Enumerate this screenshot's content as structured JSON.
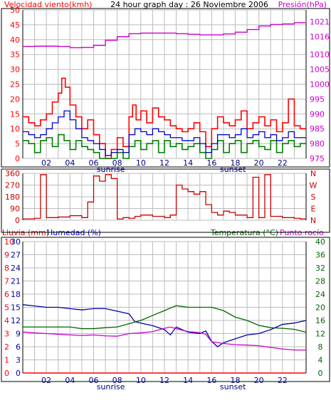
{
  "colors": {
    "wind": "#ff0000",
    "wind_avg": "#0000cc",
    "wind_dir": "#cc0000",
    "pressure": "#cc00cc",
    "rain": "#ff0000",
    "humidity": "#0000aa",
    "temperature": "#006600",
    "dewpoint": "#cc00cc",
    "grid": "#bbbbbb",
    "frame": "#000000",
    "sun_label": "#000080"
  },
  "header": {
    "left_title": "Velocidad viento(kmh)",
    "center_title": "24 hour graph day : 26 Noviembre 2006",
    "right_title": "Presión(hPa)"
  },
  "middle": {
    "direction_labels": [
      "N",
      "W",
      "S",
      "E",
      "N"
    ]
  },
  "bottom": {
    "rain_title": "Lluvia (mm)",
    "humidity_title": "Humedad (%)",
    "temp_title": "Temperatura (°C)",
    "dew_title": "Punto rocío"
  },
  "sun": {
    "sunrise_label": "sunrise",
    "sunset_label": "sunset",
    "sunrise_hour": 7.7,
    "sunset_hour": 17.8
  },
  "chart_data": [
    {
      "type": "line",
      "name": "wind-pressure",
      "x_ticks": [
        "02",
        "04",
        "06",
        "08",
        "10",
        "12",
        "14",
        "16",
        "18",
        "20",
        "22"
      ],
      "x_tick_hours": [
        2,
        4,
        6,
        8,
        10,
        12,
        14,
        16,
        18,
        20,
        22
      ],
      "x_range_hours": [
        0,
        24
      ],
      "y_left": {
        "label": "Velocidad viento(kmh)",
        "range": [
          0,
          50
        ],
        "ticks": [
          0,
          5,
          10,
          15,
          20,
          25,
          30,
          35,
          40,
          45,
          50
        ]
      },
      "y_right": {
        "label": "Presión(hPa)",
        "range": [
          975,
          1025
        ],
        "ticks": [
          975,
          980,
          985,
          990,
          995,
          1000,
          1005,
          1010,
          1016,
          1021
        ]
      },
      "wind_gust": {
        "x": [
          0,
          0.5,
          1,
          1.5,
          2,
          2.5,
          3,
          3.3,
          3.6,
          4,
          4.5,
          5,
          5.5,
          6,
          6.5,
          7,
          7.5,
          8,
          8.5,
          9,
          9.3,
          9.6,
          10,
          10.5,
          11,
          11.5,
          12,
          12.5,
          13,
          13.5,
          14,
          14.5,
          15,
          15.5,
          16,
          16.5,
          17,
          17.5,
          18,
          18.5,
          19,
          19.5,
          20,
          20.5,
          21,
          21.5,
          22,
          22.5,
          23,
          23.5
        ],
        "y": [
          14,
          12,
          11,
          13,
          15,
          19,
          22,
          27,
          24,
          18,
          14,
          10,
          13,
          8,
          5,
          0,
          3,
          7,
          4,
          14,
          18,
          13,
          16,
          12,
          17,
          14,
          13,
          11,
          10,
          9,
          10,
          12,
          9,
          4,
          10,
          14,
          12,
          11,
          13,
          16,
          10,
          12,
          14,
          11,
          13,
          9,
          12,
          20,
          11,
          10
        ]
      },
      "wind_avg": {
        "x": [
          0,
          0.5,
          1,
          1.5,
          2,
          2.5,
          3,
          3.5,
          4,
          4.5,
          5,
          5.5,
          6,
          6.5,
          7,
          7.5,
          8,
          8.5,
          9,
          9.5,
          10,
          10.5,
          11,
          11.5,
          12,
          12.5,
          13,
          13.5,
          14,
          14.5,
          15,
          15.5,
          16,
          16.5,
          17,
          17.5,
          18,
          18.5,
          19,
          19.5,
          20,
          20.5,
          21,
          21.5,
          22,
          22.5,
          23,
          23.5
        ],
        "y": [
          9,
          8,
          7,
          8,
          10,
          12,
          14,
          16,
          13,
          10,
          7,
          6,
          5,
          3,
          1,
          2,
          3,
          2,
          8,
          10,
          9,
          8,
          10,
          9,
          8,
          7,
          7,
          6,
          6,
          7,
          5,
          2,
          5,
          8,
          8,
          7,
          8,
          10,
          7,
          8,
          9,
          7,
          8,
          6,
          7,
          9,
          7,
          7
        ]
      },
      "wind_min": {
        "x": [
          0,
          0.5,
          1,
          1.5,
          2,
          2.5,
          3,
          3.5,
          4,
          4.5,
          5,
          5.5,
          6,
          6.5,
          7,
          7.5,
          8,
          8.5,
          9,
          9.5,
          10,
          10.5,
          11,
          11.5,
          12,
          12.5,
          13,
          13.5,
          14,
          14.5,
          15,
          15.5,
          16,
          16.5,
          17,
          17.5,
          18,
          18.5,
          19,
          19.5,
          20,
          20.5,
          21,
          21.5,
          22,
          22.5,
          23,
          23.5
        ],
        "y": [
          6,
          5,
          2,
          6,
          7,
          4,
          8,
          6,
          3,
          6,
          4,
          3,
          2,
          0,
          0,
          0,
          2,
          0,
          4,
          6,
          3,
          5,
          6,
          2,
          6,
          4,
          5,
          3,
          4,
          5,
          2,
          0,
          3,
          6,
          2,
          5,
          6,
          2,
          5,
          6,
          4,
          3,
          6,
          2,
          5,
          6,
          4,
          5
        ]
      },
      "pressure": {
        "x": [
          0,
          1,
          2,
          3,
          4,
          5,
          6,
          7,
          8,
          9,
          10,
          11,
          12,
          13,
          14,
          15,
          16,
          17,
          18,
          19,
          20,
          21,
          22,
          23,
          24
        ],
        "y": [
          1012.7,
          1012.8,
          1012.8,
          1012.7,
          1012.3,
          1012.4,
          1013.1,
          1014.8,
          1016.0,
          1017.0,
          1017.2,
          1017.2,
          1017.2,
          1017.0,
          1016.8,
          1016.6,
          1016.6,
          1016.9,
          1017.5,
          1018.4,
          1019.6,
          1020.1,
          1020.3,
          1020.7,
          1020.9
        ]
      }
    },
    {
      "type": "scatter",
      "name": "wind-direction",
      "y_ticks": [
        0,
        90,
        180,
        270,
        360
      ],
      "y_range": [
        0,
        360
      ],
      "x": [
        0,
        1,
        1.5,
        2,
        3,
        4,
        5,
        5.5,
        6,
        6.5,
        7,
        7.5,
        8,
        8.5,
        9,
        9.5,
        10,
        11,
        12,
        12.5,
        13,
        13.5,
        14,
        14.5,
        15,
        15.5,
        16,
        16.5,
        17,
        17.5,
        18,
        19,
        19.5,
        20,
        20.5,
        21,
        22,
        23,
        23.5
      ],
      "y": [
        10,
        15,
        350,
        20,
        25,
        35,
        20,
        140,
        340,
        300,
        350,
        320,
        10,
        20,
        15,
        30,
        40,
        30,
        20,
        40,
        270,
        240,
        220,
        200,
        220,
        120,
        60,
        40,
        70,
        60,
        40,
        20,
        330,
        20,
        350,
        30,
        20,
        15,
        10
      ]
    },
    {
      "type": "line",
      "name": "rain-humidity-temperature",
      "y_left_rain": {
        "label": "Lluvia (mm)",
        "ticks": [
          0,
          1,
          2,
          3,
          4,
          5,
          6,
          7,
          8,
          9,
          10
        ]
      },
      "y_left_humidity": {
        "label": "Humedad (%)",
        "ticks": [
          0,
          3,
          6,
          9,
          12,
          15,
          18,
          21,
          24,
          27,
          30
        ],
        "range": [
          0,
          100
        ]
      },
      "y_right_temp": {
        "label": "Temperatura (°C)",
        "ticks": [
          0,
          4,
          8,
          12,
          16,
          20,
          24,
          28,
          32,
          36,
          40
        ],
        "range": [
          0,
          40
        ]
      },
      "humidity": {
        "x": [
          0,
          1,
          2,
          3,
          4,
          5,
          6,
          7,
          8,
          9,
          9.5,
          10,
          11,
          12,
          12.5,
          13,
          14,
          15,
          15.5,
          16,
          16.5,
          17,
          18,
          19,
          20,
          21,
          22,
          23,
          24
        ],
        "y": [
          52,
          51,
          50,
          50,
          49,
          48,
          49,
          49,
          47,
          45,
          39,
          38,
          36,
          33,
          29,
          35,
          31,
          30,
          32,
          24,
          20,
          23,
          26,
          29,
          30,
          33,
          37,
          38,
          40
        ]
      },
      "temperature": {
        "x": [
          0,
          1,
          2,
          3,
          4,
          5,
          6,
          7,
          8,
          9,
          10,
          11,
          12,
          13,
          14,
          15,
          16,
          17,
          18,
          19,
          20,
          21,
          22,
          23,
          24
        ],
        "y": [
          14,
          14,
          14,
          14,
          14,
          13.5,
          13.5,
          13.8,
          14,
          15,
          16,
          17.5,
          19,
          20.5,
          20,
          20,
          20,
          19,
          17,
          16,
          14.5,
          13.8,
          13.6,
          13.3,
          12.4
        ]
      },
      "dewpoint": {
        "x": [
          0,
          1,
          2,
          3,
          4,
          5,
          6,
          7,
          8,
          9,
          10,
          11,
          12,
          12.5,
          13,
          14,
          15,
          15.5,
          16,
          17,
          18,
          19,
          20,
          21,
          22,
          23,
          24
        ],
        "y": [
          12.5,
          12.2,
          12,
          11.8,
          11.6,
          11.4,
          11.6,
          11.3,
          11.2,
          12,
          12.2,
          12.6,
          13.6,
          14,
          13.5,
          12.6,
          12.3,
          11.8,
          9.5,
          9,
          8.6,
          8.5,
          8.3,
          7.8,
          7.3,
          7,
          7
        ]
      },
      "rain": {
        "x": [
          0,
          24
        ],
        "y": [
          0,
          0
        ]
      }
    }
  ]
}
